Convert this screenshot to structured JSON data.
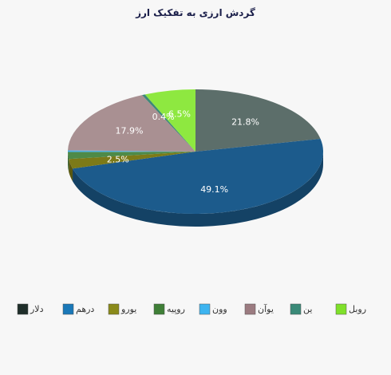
{
  "chart_data": {
    "type": "pie",
    "title": "گردش ارزی به تفکیک ارز",
    "slices": [
      {
        "name": "دلار",
        "value": 21.8,
        "label": "21.8%",
        "color": "#5c6e6a",
        "legend_color": "#1f2e2a"
      },
      {
        "name": "درهم",
        "value": 49.1,
        "label": "49.1%",
        "color": "#1c5b8c",
        "legend_color": "#1a78b8"
      },
      {
        "name": "یورو",
        "value": 2.5,
        "label": "2.5%",
        "color": "#7c7a18",
        "legend_color": "#8a8a1a"
      },
      {
        "name": "روپیه",
        "value": 1.8,
        "label": "",
        "color": "#4e8a48",
        "legend_color": "#3f7f37"
      },
      {
        "name": "وون",
        "value": 0.4,
        "label": "",
        "color": "#53b2e8",
        "legend_color": "#3db4f0"
      },
      {
        "name": "یوآن",
        "value": 17.9,
        "label": "17.9%",
        "color": "#a99092",
        "legend_color": "#9b7b80"
      },
      {
        "name": "ین",
        "value": 0.4,
        "label": "0.4%",
        "color": "#3e8878",
        "legend_color": "#3a8a78"
      },
      {
        "name": "روبل",
        "value": 6.5,
        "label": "6.5%",
        "color": "#8ee840",
        "legend_color": "#7fe02a"
      }
    ],
    "legend_position": "bottom"
  }
}
